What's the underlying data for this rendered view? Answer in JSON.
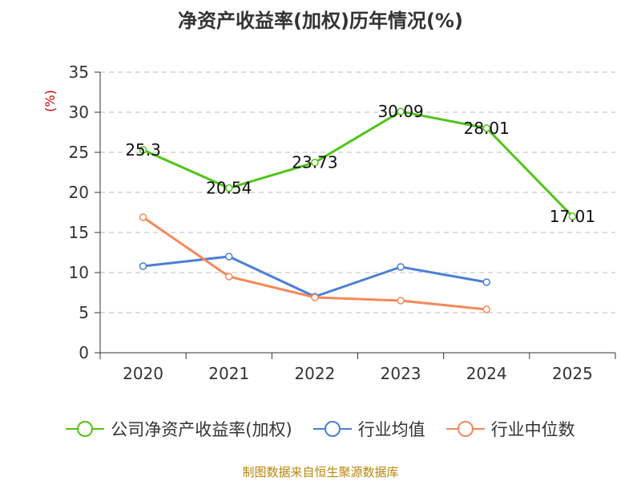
{
  "chart_data": {
    "type": "line",
    "title": "净资产收益率(加权)历年情况(%)",
    "ylabel": "(%)",
    "xlabel": "",
    "categories": [
      "2020",
      "2021",
      "2022",
      "2023",
      "2024",
      "2025"
    ],
    "ylim": [
      0,
      35
    ],
    "yticks": [
      0,
      5,
      10,
      15,
      20,
      25,
      30,
      35
    ],
    "grid": true,
    "legend_position": "bottom",
    "series": [
      {
        "name": "公司净资产收益率(加权)",
        "color": "#52c41a",
        "values": [
          25.3,
          20.54,
          23.73,
          30.09,
          28.01,
          17.01
        ],
        "labels": [
          "25.3",
          "20.54",
          "23.73",
          "30.09",
          "28.01",
          "17.01"
        ],
        "show_labels": true
      },
      {
        "name": "行业均值",
        "color": "#4a7fd6",
        "values": [
          10.8,
          12.0,
          7.0,
          10.7,
          8.8,
          null
        ],
        "show_labels": false
      },
      {
        "name": "行业中位数",
        "color": "#f5885a",
        "values": [
          16.9,
          9.5,
          6.9,
          6.5,
          5.4,
          null
        ],
        "show_labels": false
      }
    ]
  },
  "source": "制图数据来自恒生聚源数据库"
}
